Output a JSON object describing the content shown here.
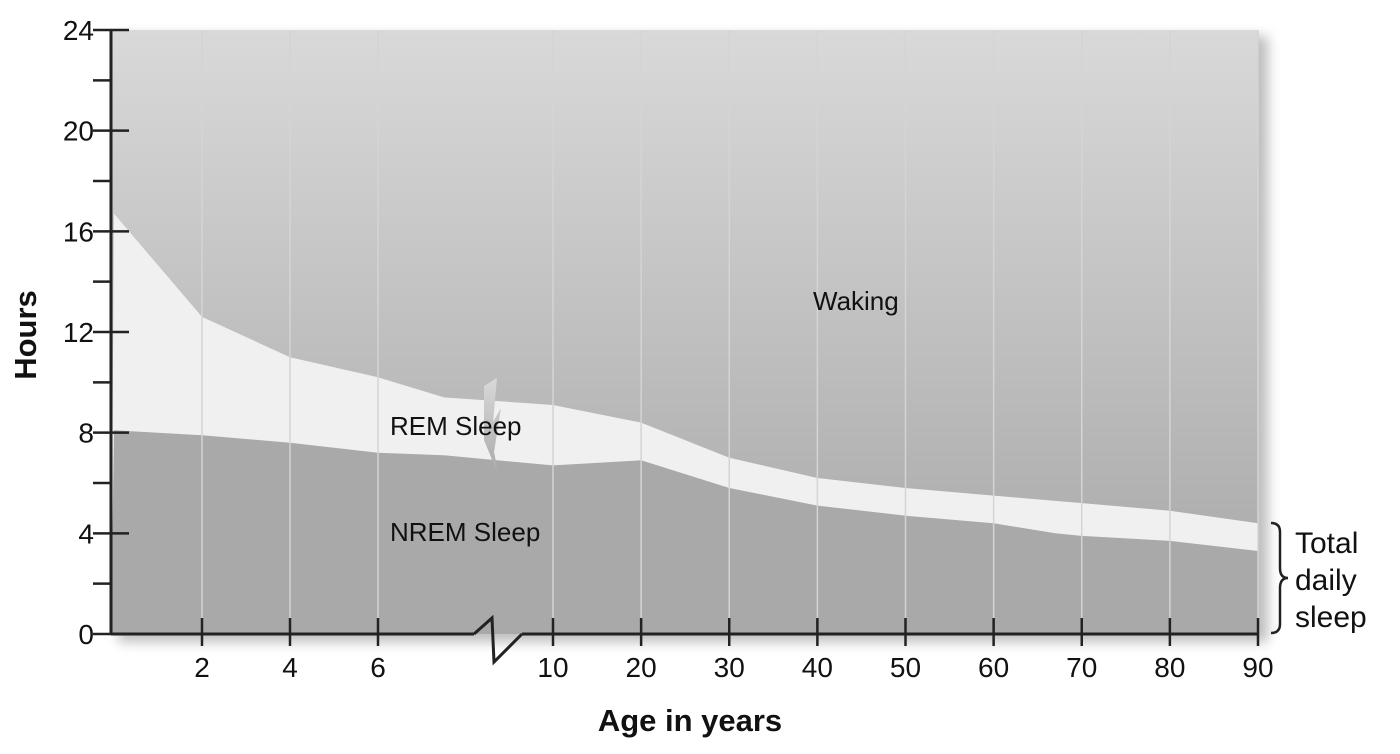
{
  "chart_data": {
    "type": "area",
    "xlabel": "Age in years",
    "ylabel": "Hours",
    "ylim": [
      0,
      24
    ],
    "y_ticks": [
      0,
      4,
      8,
      12,
      16,
      20,
      24
    ],
    "x_scale": "piecewise (broken axis: 0-7 years in 2-year steps, then 10-90 years in 10-year steps)",
    "x_tick_labels": [
      "2",
      "4",
      "6",
      "10",
      "20",
      "30",
      "40",
      "50",
      "60",
      "70",
      "80",
      "90"
    ],
    "x_ticks": [
      2,
      4,
      6,
      10,
      20,
      30,
      40,
      50,
      60,
      70,
      80,
      90
    ],
    "axis_break": "between 6 and 10",
    "series": [
      {
        "name": "NREM Sleep",
        "x": [
          0,
          2,
          4,
          6,
          7.5,
          10,
          20,
          30,
          40,
          50,
          60,
          67,
          70,
          80,
          90
        ],
        "values": [
          8.1,
          7.9,
          7.6,
          7.2,
          7.1,
          6.7,
          6.9,
          5.8,
          5.1,
          4.7,
          4.4,
          4.0,
          3.9,
          3.7,
          3.3
        ]
      },
      {
        "name": "REM Sleep",
        "x": [
          0,
          2,
          4,
          6,
          7.5,
          10,
          20,
          30,
          40,
          50,
          60,
          70,
          80,
          90
        ],
        "total_sleep": [
          16.7,
          12.6,
          11.0,
          10.2,
          9.4,
          9.1,
          8.4,
          7.0,
          6.2,
          5.8,
          5.5,
          5.2,
          4.9,
          4.4
        ]
      }
    ],
    "region_labels": {
      "waking": "Waking",
      "rem": "REM Sleep",
      "nrem": "NREM Sleep"
    },
    "bracket_label": [
      "Total",
      "daily",
      "sleep"
    ],
    "grid": "vertical lines at x ticks",
    "colors": {
      "waking_top": "#d9d9d9",
      "waking_bottom": "#a6a6a6",
      "rem": "#f0f0f0",
      "nrem": "#a9a9a9",
      "grid": "#d4d4d4"
    }
  }
}
